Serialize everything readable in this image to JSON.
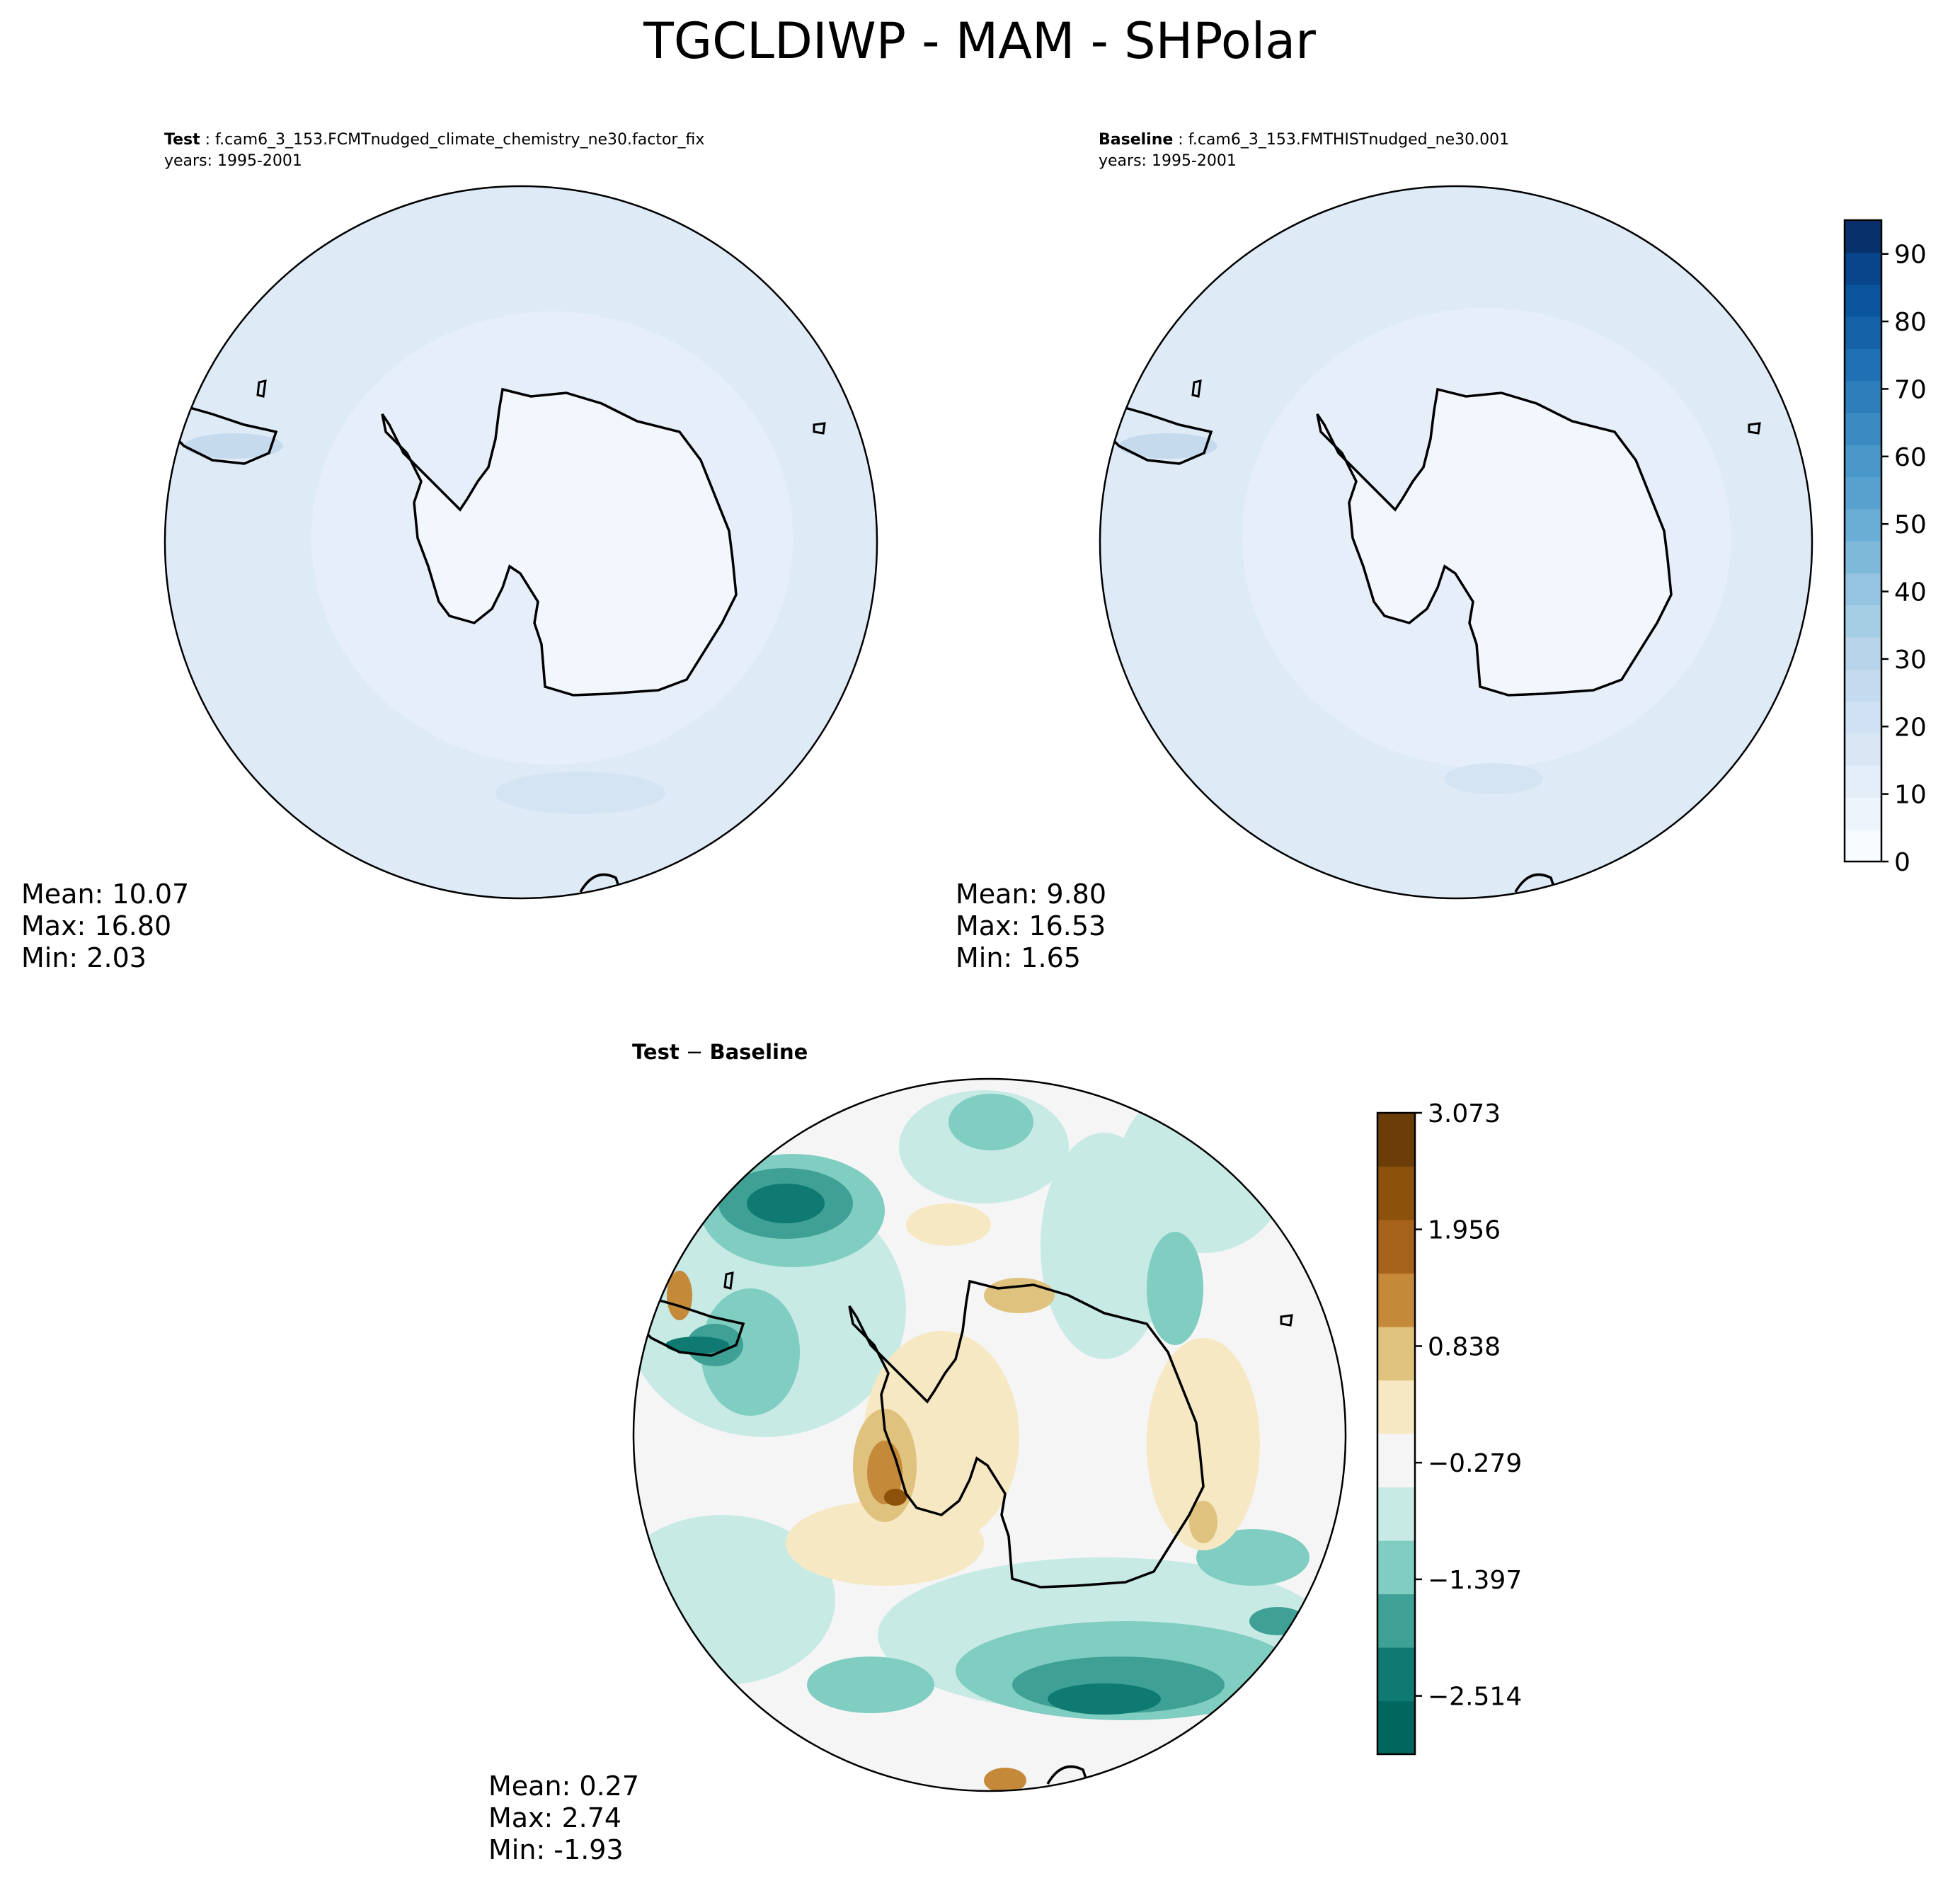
{
  "figure": {
    "title": "TGCLDIWP - MAM - SHPolar"
  },
  "panels": [
    {
      "id": "test",
      "label": "Test",
      "case": " : f.cam6_3_153.FCMTnudged_climate_chemistry_ne30.factor_fix",
      "years": "years: 1995-2001",
      "stats": {
        "mean": "Mean: 10.07",
        "max": "Max: 16.80",
        "min": "Min:  2.03"
      }
    },
    {
      "id": "baseline",
      "label": "Baseline",
      "case": " : f.cam6_3_153.FMTHISTnudged_ne30.001",
      "years": "years: 1995-2001",
      "stats": {
        "mean": "Mean:  9.80",
        "max": "Max: 16.53",
        "min": "Min:  1.65"
      }
    },
    {
      "id": "diff",
      "label": "Test",
      "minus": " − ",
      "label2": "Baseline",
      "stats": {
        "mean": "Mean:  0.27",
        "max": "Max:  2.74",
        "min": "Min: -1.93"
      }
    }
  ],
  "chart_data": [
    {
      "type": "heatmap",
      "projection": "south-polar-stereographic",
      "panel": "Test",
      "colorbar": {
        "min": 0,
        "max": 95,
        "levels": 19,
        "ticks": [
          0,
          10,
          20,
          30,
          40,
          50,
          60,
          70,
          80,
          90
        ],
        "tick_labels": [
          "0",
          "10",
          "20",
          "30",
          "40",
          "50",
          "60",
          "70",
          "80",
          "90"
        ],
        "colormap": [
          "#f7fbff",
          "#edf4fc",
          "#e3eef9",
          "#d9e7f5",
          "#cfe1f2",
          "#c4daee",
          "#b7d4ea",
          "#a5cde3",
          "#94c4df",
          "#7fb9da",
          "#6aaed6",
          "#58a1cf",
          "#4a98c9",
          "#3b8bc2",
          "#2e7ebc",
          "#2070b4",
          "#1562a9",
          "#0a549e",
          "#08458a",
          "#08306b"
        ]
      },
      "mean": 10.07,
      "max": 16.8,
      "min": 2.03
    },
    {
      "type": "heatmap",
      "projection": "south-polar-stereographic",
      "panel": "Baseline",
      "mean": 9.8,
      "max": 16.53,
      "min": 1.65
    },
    {
      "type": "heatmap",
      "projection": "south-polar-stereographic",
      "panel": "Test - Baseline",
      "colorbar": {
        "min": -3.073,
        "max": 3.073,
        "levels": 11,
        "ticks": [
          3.073,
          1.956,
          0.838,
          -0.279,
          -1.397,
          -2.514
        ],
        "tick_labels": [
          "3.073",
          "1.956",
          "0.838",
          "−0.279",
          "−1.397",
          "−2.514"
        ],
        "colormap": [
          "#01665e",
          "#0f7a72",
          "#3fa095",
          "#80cdc1",
          "#c7eae5",
          "#f5f5f5",
          "#f6e8c3",
          "#dfc27d",
          "#c5893a",
          "#a6611a",
          "#8c510a",
          "#6b3d08"
        ]
      },
      "mean": 0.27,
      "max": 2.74,
      "min": -1.93
    }
  ],
  "colors": {
    "test_fill": "#deebf7",
    "test_inner": "#eaf2fb",
    "antarctic_fill": "#f2f7fd",
    "coast": "#000000",
    "diff_neutral": "#f5f5f5"
  }
}
